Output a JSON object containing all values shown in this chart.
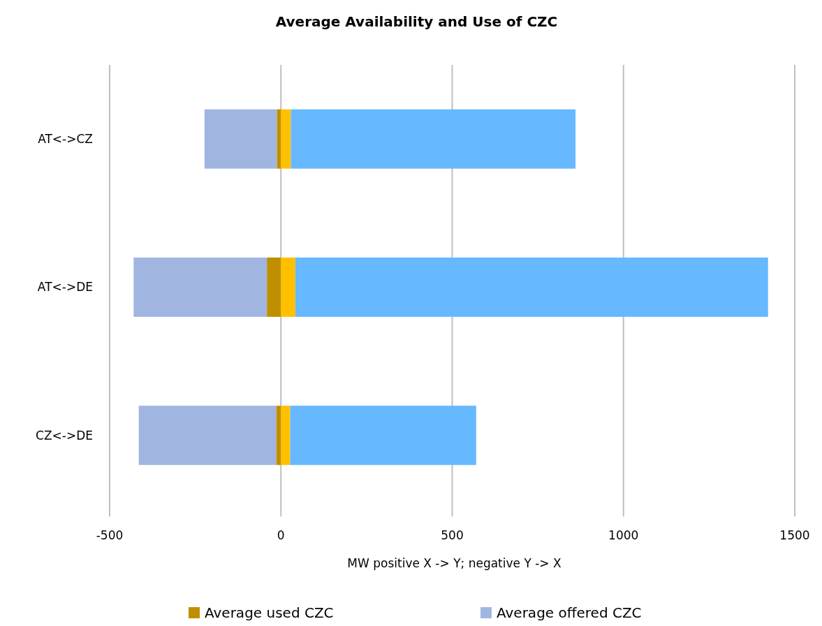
{
  "chart_data": {
    "type": "bar",
    "orientation": "horizontal",
    "title": "Average Availability and Use of CZC",
    "xlabel": "MW positive X -> Y; negative Y -> X",
    "categories": [
      "AT<->CZ",
      "AT<->DE",
      "CZ<->DE"
    ],
    "series": [
      {
        "name": "Average used CZC",
        "color": "#bf8f00",
        "values": [
          -12,
          -41,
          -14
        ]
      },
      {
        "color": "#ffc000",
        "values": [
          29,
          42,
          27
        ]
      },
      {
        "name": "Average offered CZC",
        "color": "#a0b6e0",
        "values": [
          -211,
          -389,
          -401
        ]
      },
      {
        "color": "#66b8ff",
        "values": [
          831,
          1380,
          543
        ]
      }
    ],
    "stacked": true,
    "xlim": [
      -500,
      1500
    ],
    "xticks": [
      -500,
      0,
      500,
      1000,
      1500
    ],
    "grid": "x",
    "legend": "bottom"
  }
}
